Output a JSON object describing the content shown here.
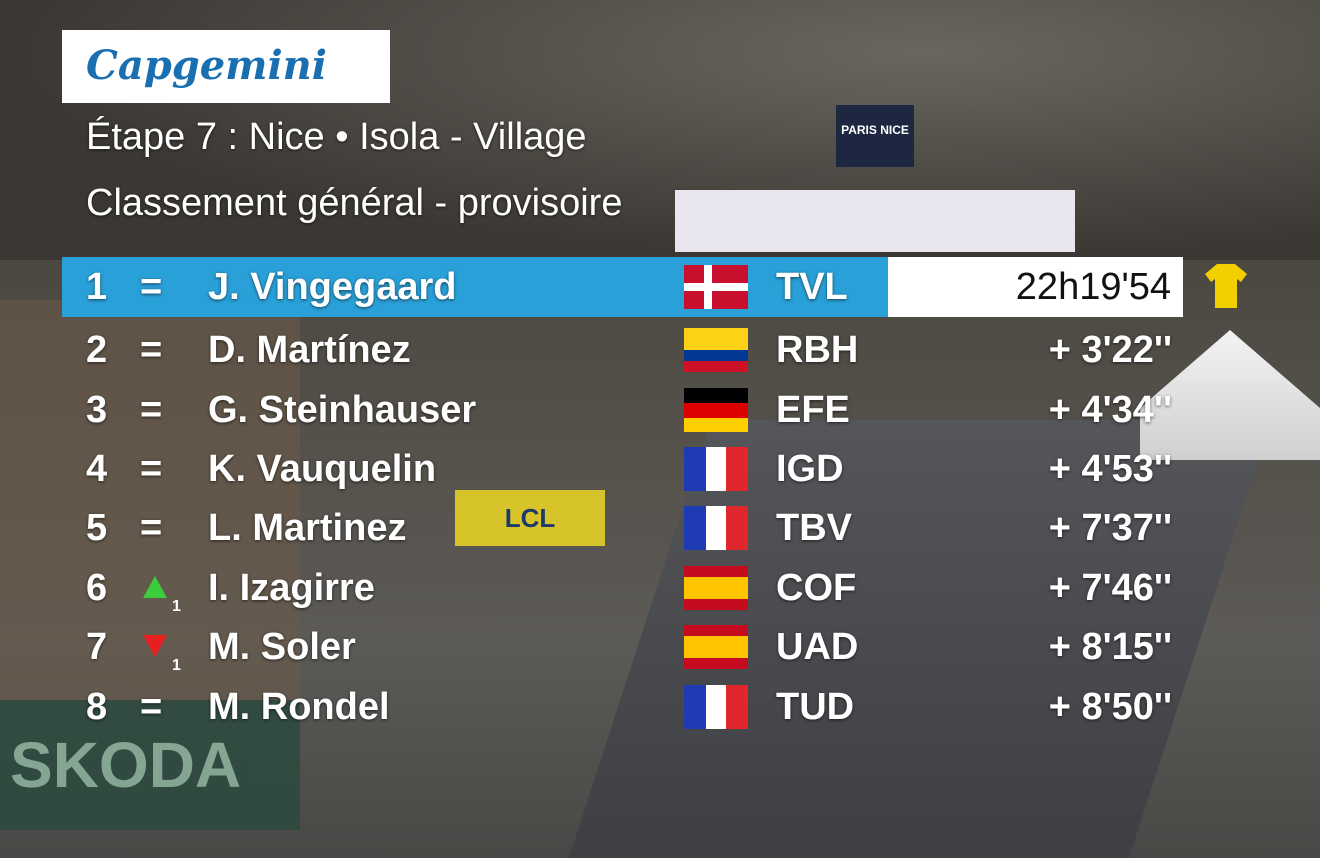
{
  "sponsor": "Capgemini",
  "title": "Étape  7 : Nice • Isola - Village",
  "subtitle": "Classement général - provisoire",
  "rows": [
    {
      "rank": "1",
      "status": "=",
      "name": "J. Vingegaard",
      "team": "TVL",
      "time": "22h19'54"
    },
    {
      "rank": "2",
      "status": "=",
      "name": "D. Martínez",
      "team": "RBH",
      "time": "+ 3'22''"
    },
    {
      "rank": "3",
      "status": "=",
      "name": "G. Steinhauser",
      "team": "EFE",
      "time": "+ 4'34''"
    },
    {
      "rank": "4",
      "status": "=",
      "name": "K. Vauquelin",
      "team": "IGD",
      "time": "+ 4'53''"
    },
    {
      "rank": "5",
      "status": "=",
      "name": "L. Martinez",
      "team": "TBV",
      "time": "+ 7'37''"
    },
    {
      "rank": "6",
      "movement": "1",
      "name": "I. Izagirre",
      "team": "COF",
      "time": "+ 7'46''"
    },
    {
      "rank": "7",
      "movement": "1",
      "name": "M. Soler",
      "team": "UAD",
      "time": "+ 8'15''"
    },
    {
      "rank": "8",
      "status": "=",
      "name": "M. Rondel",
      "team": "TUD",
      "time": "+ 8'50''"
    }
  ],
  "background_signs": [
    "LCL",
    "SKODA",
    "PARIS NICE"
  ]
}
